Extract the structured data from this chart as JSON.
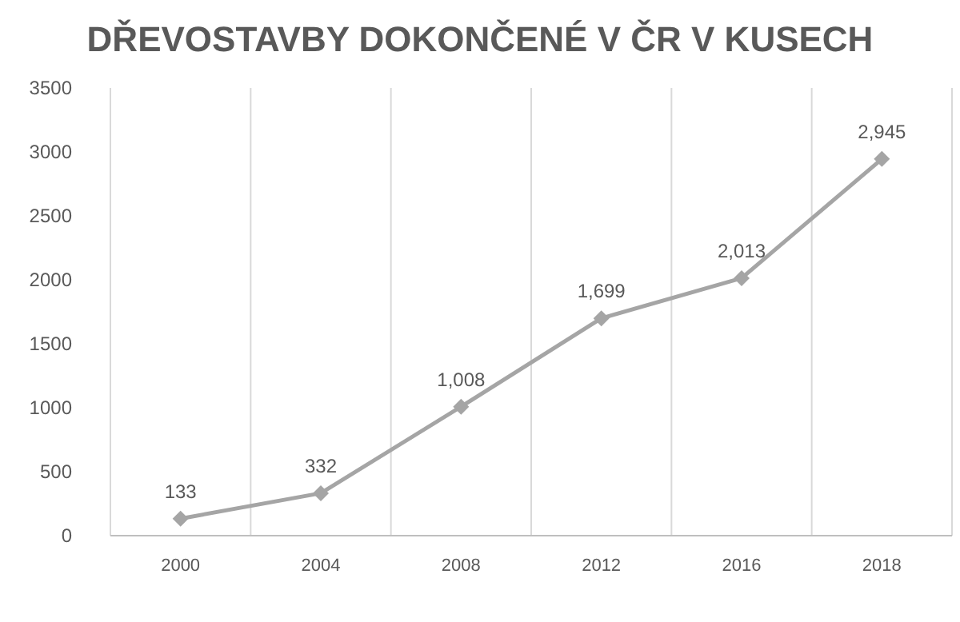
{
  "chart_data": {
    "type": "line",
    "title": "DŘEVOSTAVBY DOKONČENÉ V ČR V KUSECH",
    "categories": [
      "2000",
      "2004",
      "2008",
      "2012",
      "2016",
      "2018"
    ],
    "series": [
      {
        "color": "#a5a5a5",
        "values": [
          133,
          332,
          1008,
          1699,
          2013,
          2945
        ],
        "value_labels": [
          "133",
          "332",
          "1,008",
          "1,699",
          "2,013",
          "2,945"
        ]
      }
    ],
    "ylim": [
      0,
      3500
    ],
    "yticks": [
      0,
      500,
      1000,
      1500,
      2000,
      2500,
      3000,
      3500
    ],
    "grid": "x",
    "marker": "diamond",
    "line_style": "solid"
  }
}
